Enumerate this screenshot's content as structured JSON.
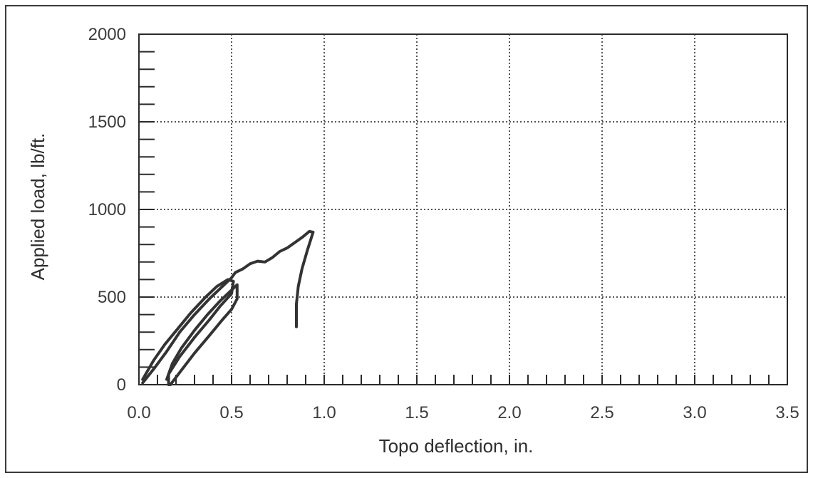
{
  "chart_data": {
    "type": "line",
    "title": "",
    "xlabel": "Topo deflection, in.",
    "ylabel": "Applied load, lb/ft.",
    "xlim": [
      0.0,
      3.5
    ],
    "ylim": [
      0,
      2000
    ],
    "x_ticks": [
      "0.0",
      "0.5",
      "1.0",
      "1.5",
      "2.0",
      "2.5",
      "3.0",
      "3.5"
    ],
    "y_ticks": [
      "0",
      "500",
      "1000",
      "1500",
      "2000"
    ],
    "grid": true,
    "legend": "none",
    "series": [
      {
        "name": "",
        "color": "#333333",
        "points": [
          [
            0.02,
            10
          ],
          [
            0.08,
            90
          ],
          [
            0.15,
            190
          ],
          [
            0.22,
            300
          ],
          [
            0.3,
            400
          ],
          [
            0.38,
            490
          ],
          [
            0.45,
            560
          ],
          [
            0.5,
            610
          ],
          [
            0.52,
            640
          ],
          [
            0.56,
            660
          ],
          [
            0.6,
            690
          ],
          [
            0.64,
            705
          ],
          [
            0.68,
            700
          ],
          [
            0.72,
            725
          ],
          [
            0.76,
            760
          ],
          [
            0.8,
            780
          ],
          [
            0.84,
            810
          ],
          [
            0.88,
            840
          ],
          [
            0.92,
            875
          ],
          [
            0.94,
            870
          ],
          [
            0.91,
            770
          ],
          [
            0.88,
            660
          ],
          [
            0.86,
            560
          ],
          [
            0.85,
            460
          ],
          [
            0.85,
            330
          ]
        ]
      },
      {
        "name": "",
        "color": "#333333",
        "points": [
          [
            0.16,
            0
          ],
          [
            0.16,
            60
          ],
          [
            0.22,
            160
          ],
          [
            0.3,
            270
          ],
          [
            0.38,
            370
          ],
          [
            0.44,
            450
          ],
          [
            0.5,
            520
          ],
          [
            0.51,
            590
          ],
          [
            0.48,
            600
          ],
          [
            0.42,
            560
          ],
          [
            0.36,
            500
          ],
          [
            0.28,
            410
          ],
          [
            0.21,
            320
          ],
          [
            0.14,
            230
          ],
          [
            0.08,
            140
          ],
          [
            0.02,
            30
          ]
        ]
      },
      {
        "name": "",
        "color": "#333333",
        "points": [
          [
            0.17,
            0
          ],
          [
            0.22,
            70
          ],
          [
            0.3,
            180
          ],
          [
            0.38,
            280
          ],
          [
            0.45,
            370
          ],
          [
            0.5,
            430
          ],
          [
            0.53,
            490
          ],
          [
            0.53,
            570
          ],
          [
            0.5,
            540
          ],
          [
            0.44,
            480
          ],
          [
            0.37,
            400
          ],
          [
            0.3,
            310
          ],
          [
            0.23,
            210
          ],
          [
            0.18,
            120
          ],
          [
            0.15,
            30
          ]
        ]
      }
    ]
  }
}
